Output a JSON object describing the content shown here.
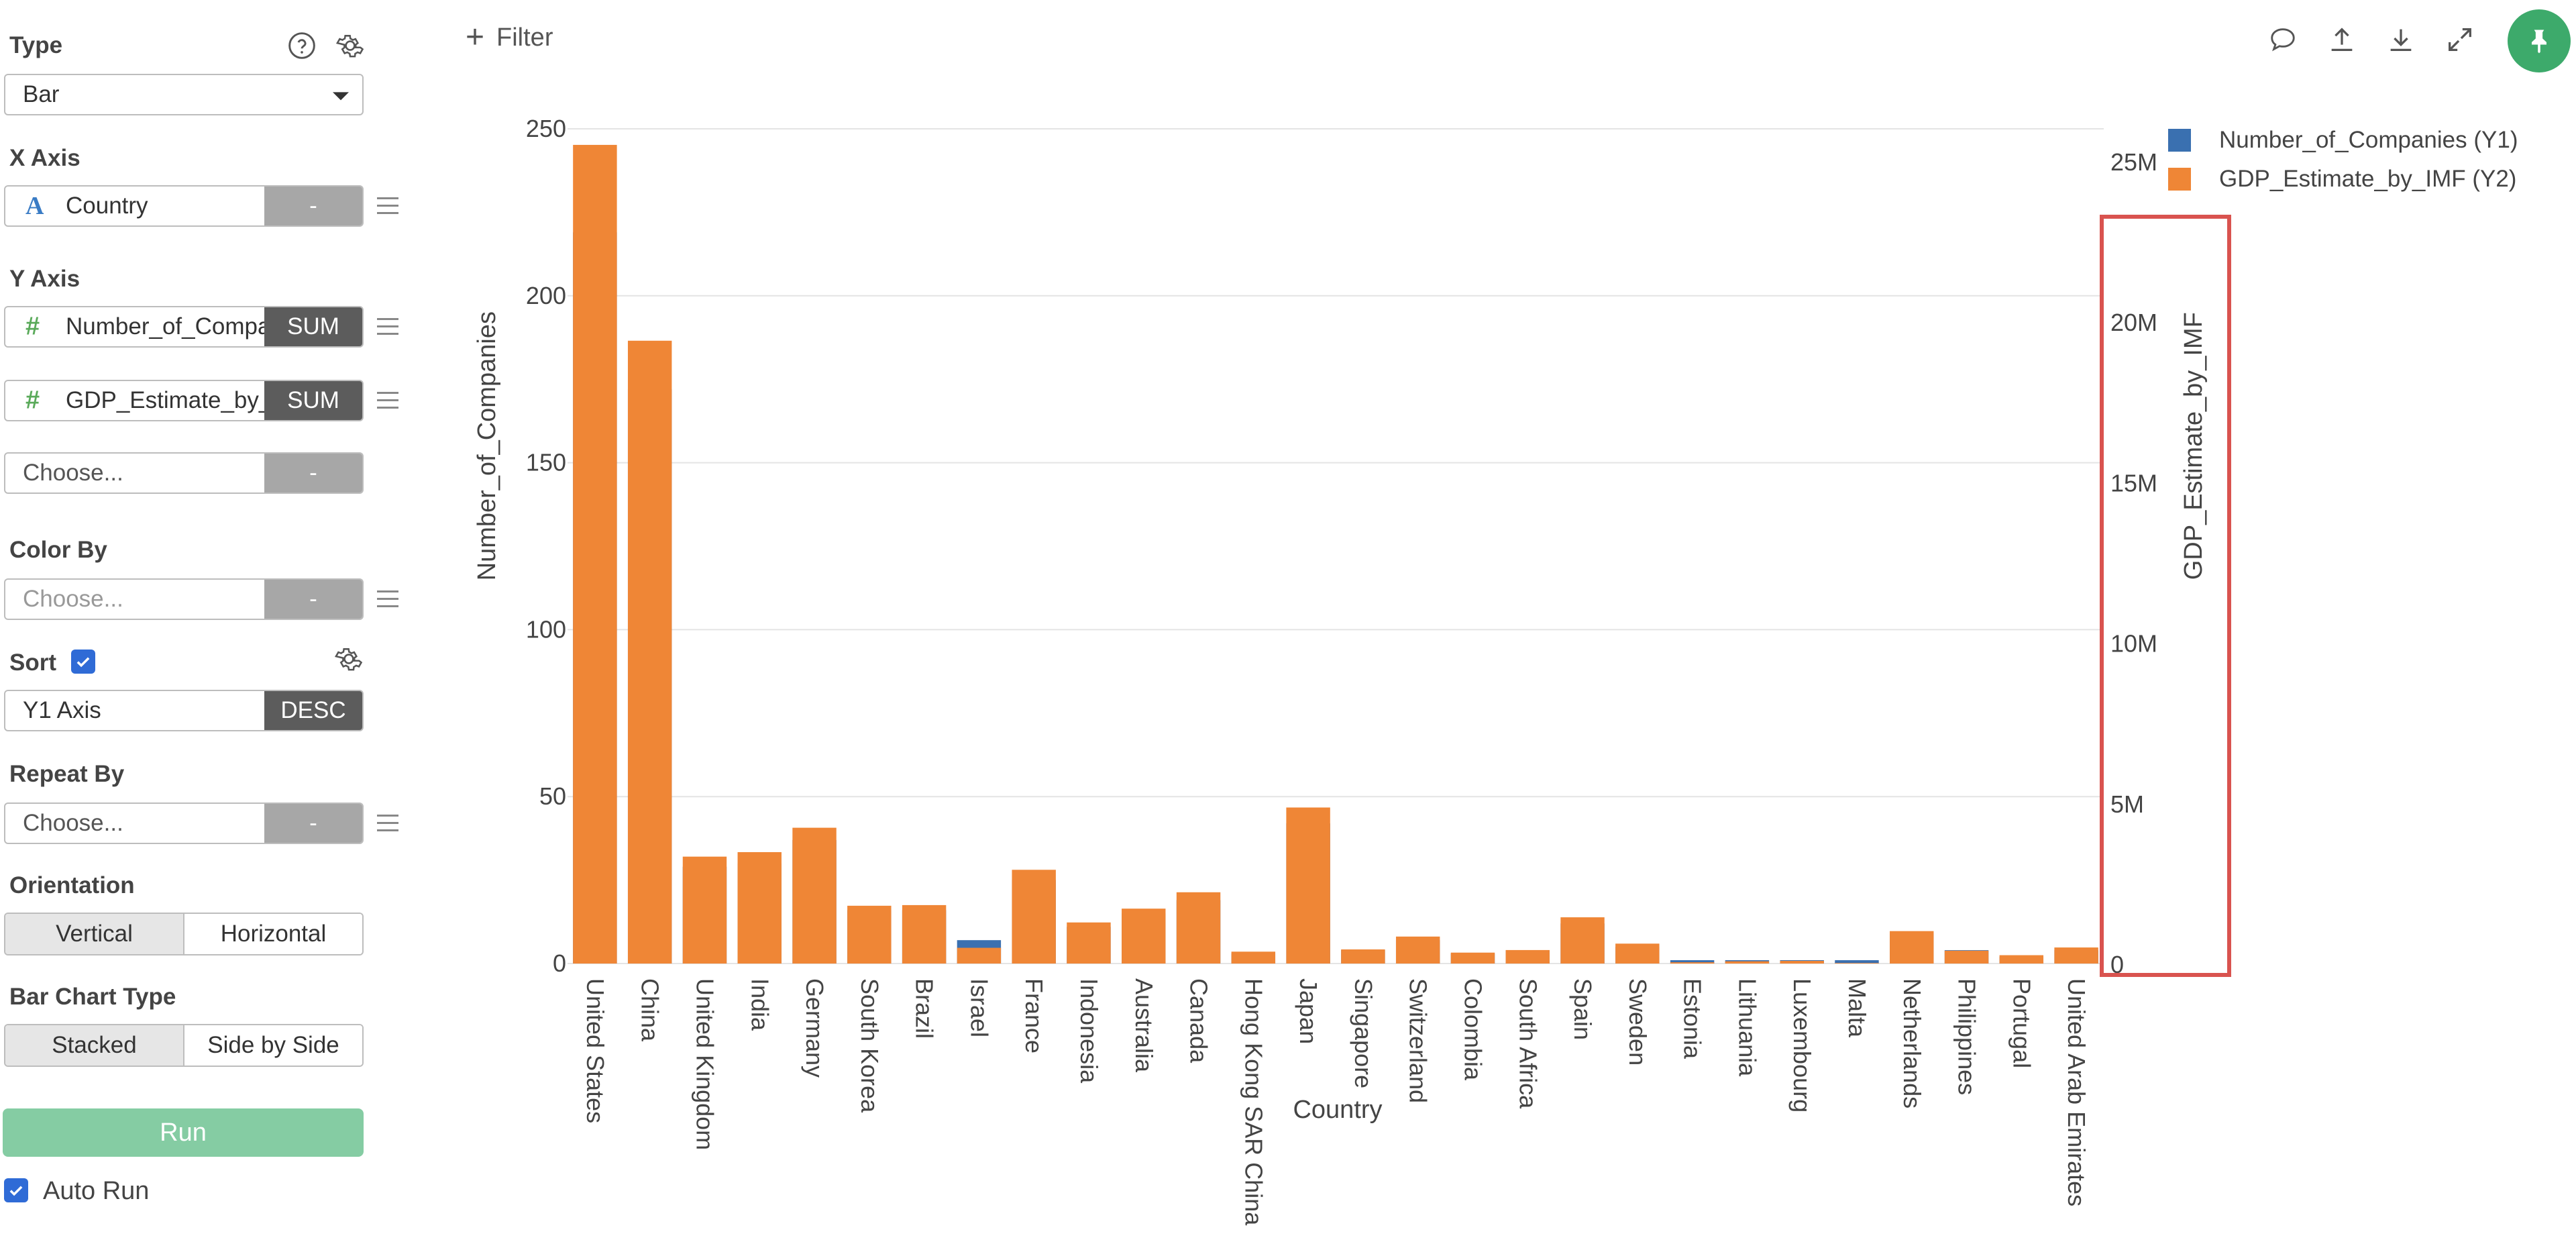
{
  "sidebar": {
    "type_label": "Type",
    "type_value": "Bar",
    "x_axis_label": "X Axis",
    "x_axis_field": "Country",
    "x_axis_btn": "-",
    "y_axis_label": "Y Axis",
    "y1_field": "Number_of_Companies",
    "y1_agg": "SUM",
    "y2_field": "GDP_Estimate_by_IMF",
    "y2_agg": "SUM",
    "y3_placeholder": "Choose...",
    "y3_btn": "-",
    "color_by_label": "Color By",
    "color_by_placeholder": "Choose...",
    "color_by_btn": "-",
    "sort_label": "Sort",
    "sort_checked": true,
    "sort_field": "Y1 Axis",
    "sort_order": "DESC",
    "repeat_by_label": "Repeat By",
    "repeat_by_placeholder": "Choose...",
    "repeat_by_btn": "-",
    "orientation_label": "Orientation",
    "orientation_options": [
      "Vertical",
      "Horizontal"
    ],
    "orientation_selected": "Vertical",
    "bar_type_label": "Bar Chart Type",
    "bar_type_options": [
      "Stacked",
      "Side by Side"
    ],
    "bar_type_selected": "Stacked",
    "run_label": "Run",
    "auto_run_label": "Auto Run",
    "auto_run_checked": true
  },
  "toolbar": {
    "filter_label": "Filter",
    "icons": [
      "comment-icon",
      "upload-icon",
      "download-icon",
      "expand-icon",
      "pin-icon"
    ]
  },
  "colors": {
    "series1": "#3a70b0",
    "series2": "#ef8636",
    "run_button": "#85cca3",
    "pin_button": "#3daa6b",
    "highlight": "#d9534f",
    "checkbox": "#2f6bd6"
  },
  "chart_data": {
    "type": "bar",
    "stacked": true,
    "xlabel": "Country",
    "ylabel": "Number_of_Companies",
    "y2label": "GDP_Estimate_by_IMF",
    "ylim": [
      0,
      250
    ],
    "y2lim": [
      0,
      26000000
    ],
    "yticks": [
      0,
      50,
      100,
      150,
      200,
      250
    ],
    "y2ticks": [
      0,
      5000000,
      10000000,
      15000000,
      20000000,
      25000000
    ],
    "y2ticklabels": [
      "0",
      "5M",
      "10M",
      "15M",
      "20M",
      "25M"
    ],
    "grid": true,
    "legend_position": "top-right",
    "categories": [
      "United States",
      "China",
      "United Kingdom",
      "India",
      "Germany",
      "South Korea",
      "Brazil",
      "Israel",
      "France",
      "Indonesia",
      "Australia",
      "Canada",
      "Hong Kong SAR China",
      "Japan",
      "Singapore",
      "Switzerland",
      "Colombia",
      "South Africa",
      "Spain",
      "Sweden",
      "Estonia",
      "Lithuania",
      "Luxembourg",
      "Malta",
      "Netherlands",
      "Philippines",
      "Portugal",
      "United Arab Emirates"
    ],
    "series": [
      {
        "name": "Number_of_Companies (Y1)",
        "axis": "y1",
        "values": [
          219,
          172,
          29,
          30,
          37,
          16,
          16,
          7,
          25,
          11,
          15,
          19,
          3,
          42,
          4,
          7,
          3,
          4,
          12,
          5,
          1,
          1,
          1,
          1,
          9,
          4,
          2,
          4
        ]
      },
      {
        "name": "GDP_Estimate_by_IMF (Y2)",
        "axis": "y2",
        "values": [
          25500000,
          19400000,
          3330000,
          3470000,
          4230000,
          1800000,
          1820000,
          490000,
          2920000,
          1280000,
          1710000,
          2220000,
          370000,
          4860000,
          440000,
          840000,
          340000,
          420000,
          1440000,
          620000,
          40000,
          70000,
          83000,
          17000,
          1010000,
          400000,
          260000,
          500000
        ]
      }
    ]
  }
}
